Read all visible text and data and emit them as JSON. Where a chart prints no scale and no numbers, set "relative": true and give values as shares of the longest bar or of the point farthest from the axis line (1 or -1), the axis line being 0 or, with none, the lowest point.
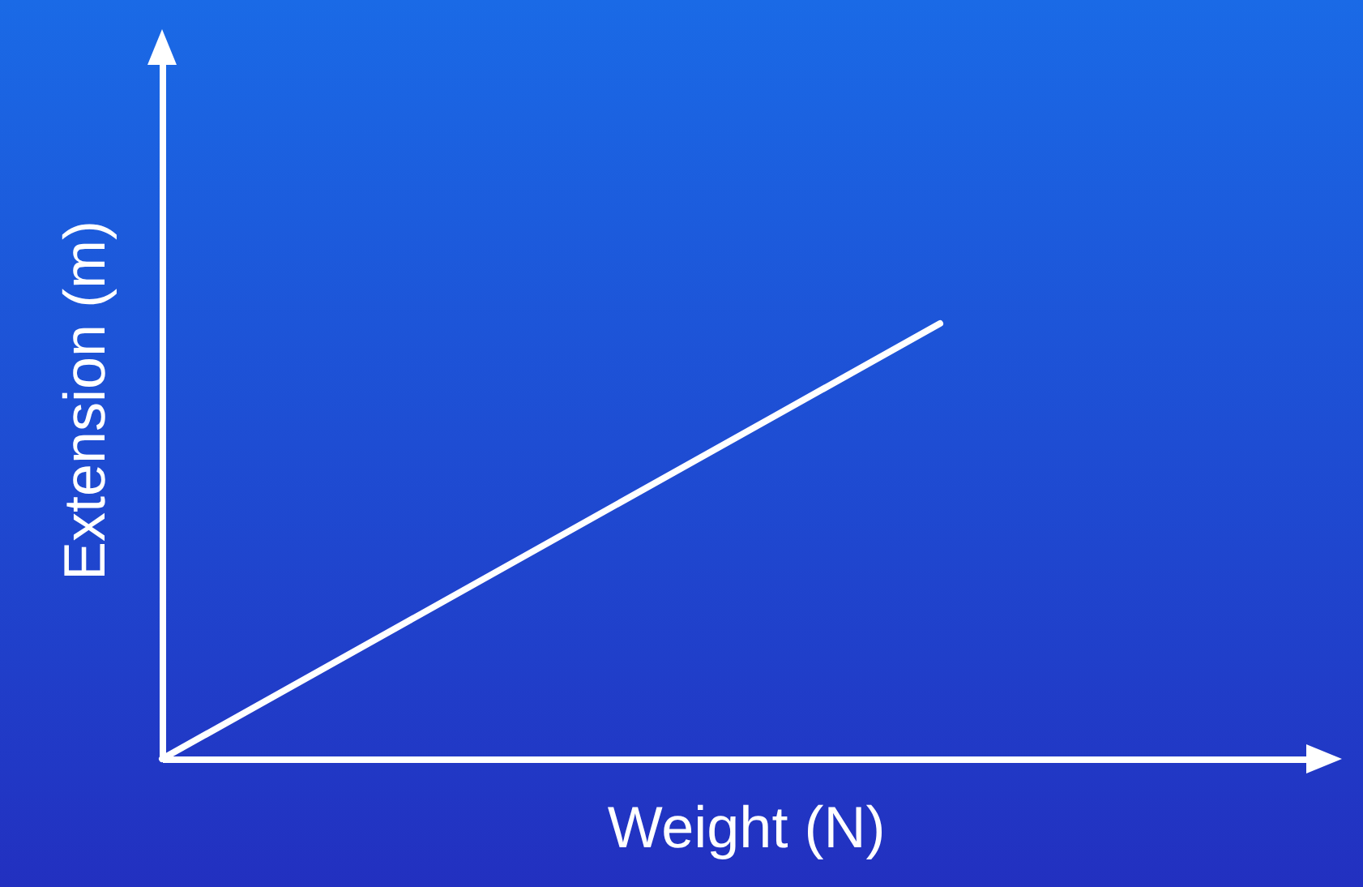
{
  "chart_data": {
    "type": "line",
    "xlabel": "Weight (N)",
    "ylabel": "Extension (m)",
    "categories": [
      null,
      null
    ],
    "values": [
      0,
      1
    ],
    "color": "#ffffff",
    "relative": true,
    "tick_labels": false
  }
}
